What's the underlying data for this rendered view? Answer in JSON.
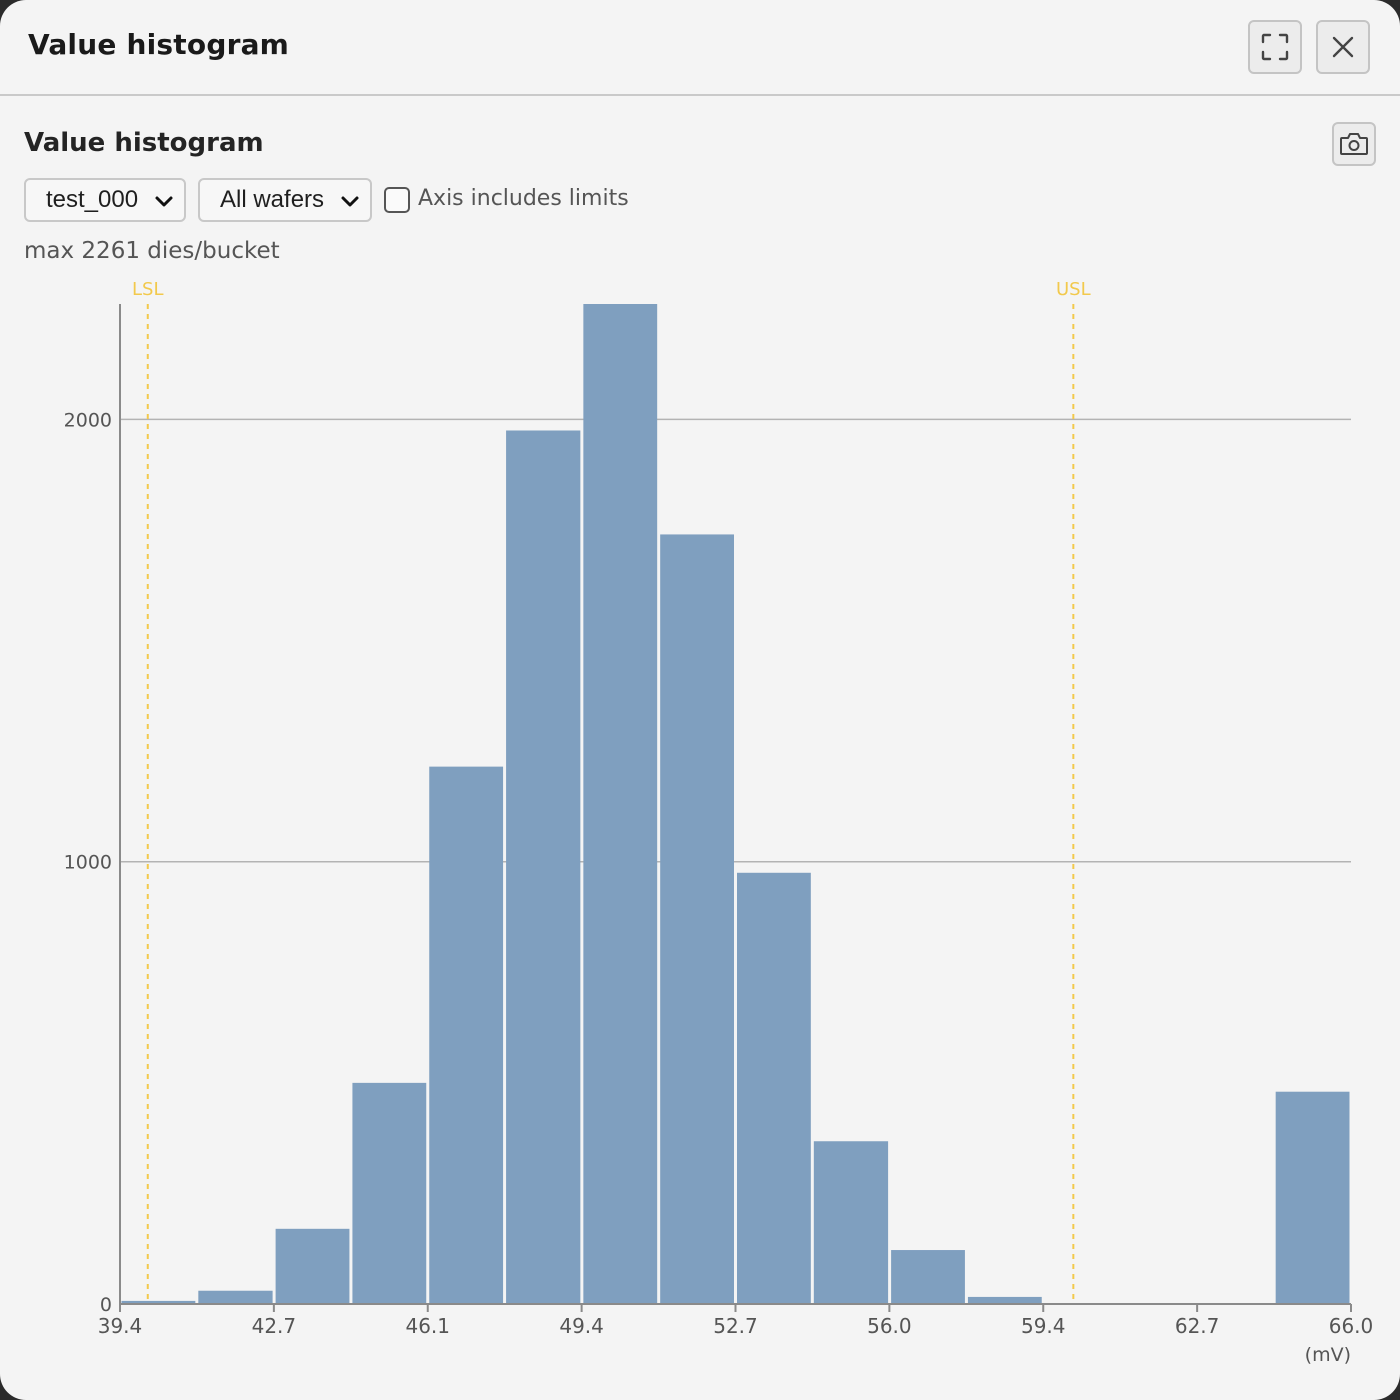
{
  "window": {
    "title": "Value histogram",
    "fullscreen_icon": "expand-icon",
    "close_icon": "close-icon"
  },
  "panel": {
    "title": "Value histogram",
    "camera_icon": "camera-icon"
  },
  "controls": {
    "test_select": "test_000",
    "wafer_select": "All wafers",
    "axis_checkbox_label": "Axis includes limits",
    "axis_checkbox_checked": false
  },
  "bucket_info": "max 2261 dies/bucket",
  "colors": {
    "bar": "#7f9fbf",
    "limit": "#f2c94c",
    "grid": "#b3b3b3",
    "axis": "#8a8a8a"
  },
  "chart_data": {
    "type": "bar",
    "x_tick_labels": [
      "39.4",
      "42.7",
      "46.1",
      "49.4",
      "52.7",
      "56.0",
      "59.4",
      "62.7",
      "66.0"
    ],
    "x_range": [
      39.4,
      66.0
    ],
    "x_unit": "(mV)",
    "y_ticks": [
      0,
      1000,
      2000
    ],
    "y_range": [
      0,
      2261
    ],
    "bins": [
      {
        "start": 39.4,
        "end": 41.06,
        "count": 7
      },
      {
        "start": 41.06,
        "end": 42.73,
        "count": 30
      },
      {
        "start": 42.73,
        "end": 44.39,
        "count": 170
      },
      {
        "start": 44.39,
        "end": 46.05,
        "count": 500
      },
      {
        "start": 46.05,
        "end": 47.71,
        "count": 1215
      },
      {
        "start": 47.71,
        "end": 49.38,
        "count": 1975
      },
      {
        "start": 49.38,
        "end": 51.04,
        "count": 2261
      },
      {
        "start": 51.04,
        "end": 52.7,
        "count": 1740
      },
      {
        "start": 52.7,
        "end": 54.36,
        "count": 975
      },
      {
        "start": 54.36,
        "end": 56.03,
        "count": 368
      },
      {
        "start": 56.03,
        "end": 57.69,
        "count": 122
      },
      {
        "start": 57.69,
        "end": 59.35,
        "count": 16
      },
      {
        "start": 59.35,
        "end": 61.01,
        "count": 0
      },
      {
        "start": 61.01,
        "end": 62.68,
        "count": 0
      },
      {
        "start": 62.68,
        "end": 64.34,
        "count": 0
      },
      {
        "start": 64.34,
        "end": 66.0,
        "count": 480
      }
    ],
    "limits": [
      {
        "label": "LSL",
        "value": 40.0
      },
      {
        "label": "USL",
        "value": 60.0
      }
    ],
    "grid": true
  }
}
